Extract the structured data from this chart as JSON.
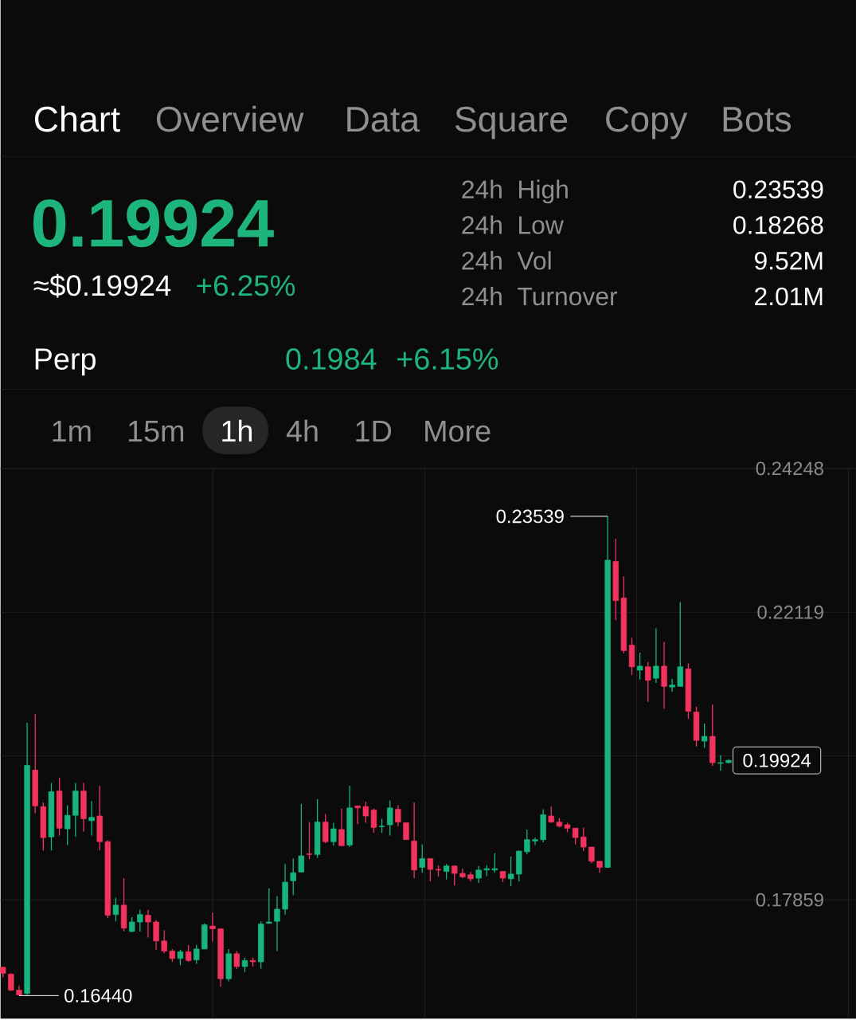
{
  "chart_data": {
    "type": "candlestick",
    "categories": [
      null,
      null,
      null,
      null,
      null,
      null,
      null,
      null,
      null,
      null,
      null,
      null,
      null,
      null,
      null,
      null,
      null,
      null,
      null,
      null,
      null,
      null,
      null,
      null,
      null,
      null,
      null,
      null,
      null,
      null,
      null,
      null,
      null,
      null,
      null,
      null,
      null,
      null,
      null,
      null,
      null,
      null,
      null,
      null,
      null,
      null,
      null,
      null,
      null,
      null,
      null,
      null,
      null,
      null,
      null,
      null,
      null,
      null,
      null,
      null,
      null,
      null,
      null,
      null,
      null,
      null,
      null,
      null,
      null,
      null,
      null,
      null,
      null,
      null,
      null,
      null,
      null,
      null,
      null,
      null,
      null,
      null,
      null,
      null,
      null,
      null,
      null,
      null,
      null,
      null,
      null
    ],
    "ohlc": [
      [
        0.1686,
        0.1687,
        0.1671,
        0.1677
      ],
      [
        0.1676,
        0.1677,
        0.1651,
        0.1652
      ],
      [
        0.1652,
        0.1659,
        0.1644,
        0.1645
      ],
      [
        0.1647,
        0.2048,
        0.1645,
        0.1985
      ],
      [
        0.1978,
        0.2061,
        0.1914,
        0.1925
      ],
      [
        0.1924,
        0.193,
        0.1859,
        0.1878
      ],
      [
        0.1879,
        0.1959,
        0.1859,
        0.1946
      ],
      [
        0.1947,
        0.1967,
        0.1881,
        0.1892
      ],
      [
        0.1891,
        0.1926,
        0.1867,
        0.1911
      ],
      [
        0.1911,
        0.1959,
        0.1879,
        0.1947
      ],
      [
        0.1947,
        0.1959,
        0.1887,
        0.1906
      ],
      [
        0.1903,
        0.1932,
        0.1881,
        0.1908
      ],
      [
        0.191,
        0.1955,
        0.1859,
        0.1872
      ],
      [
        0.1872,
        0.1874,
        0.1759,
        0.1763
      ],
      [
        0.1764,
        0.1789,
        0.1754,
        0.1778
      ],
      [
        0.1778,
        0.1818,
        0.1739,
        0.1744
      ],
      [
        0.1739,
        0.176,
        0.1738,
        0.1753
      ],
      [
        0.1753,
        0.1771,
        0.1739,
        0.1764
      ],
      [
        0.1763,
        0.1771,
        0.173,
        0.1753
      ],
      [
        0.1753,
        0.1756,
        0.1712,
        0.1725
      ],
      [
        0.1725,
        0.1741,
        0.1707,
        0.171
      ],
      [
        0.171,
        0.1713,
        0.1694,
        0.1699
      ],
      [
        0.1699,
        0.1712,
        0.1689,
        0.1709
      ],
      [
        0.1709,
        0.1719,
        0.1694,
        0.1696
      ],
      [
        0.1697,
        0.1719,
        0.1691,
        0.1713
      ],
      [
        0.1713,
        0.1751,
        0.1713,
        0.1749
      ],
      [
        0.1747,
        0.1767,
        0.1724,
        0.1743
      ],
      [
        0.1743,
        0.1743,
        0.1657,
        0.1669
      ],
      [
        0.1669,
        0.1713,
        0.1665,
        0.1706
      ],
      [
        0.1706,
        0.171,
        0.1683,
        0.1687
      ],
      [
        0.1687,
        0.17,
        0.1679,
        0.1696
      ],
      [
        0.1696,
        0.17,
        0.1687,
        0.1694
      ],
      [
        0.1694,
        0.1754,
        0.1684,
        0.175
      ],
      [
        0.1751,
        0.1803,
        0.1751,
        0.1753
      ],
      [
        0.1754,
        0.1791,
        0.171,
        0.1772
      ],
      [
        0.1772,
        0.1839,
        0.1764,
        0.1812
      ],
      [
        0.1814,
        0.1847,
        0.1793,
        0.1826
      ],
      [
        0.1827,
        0.1928,
        0.1827,
        0.1851
      ],
      [
        0.1854,
        0.1901,
        0.1846,
        0.1853
      ],
      [
        0.1853,
        0.1935,
        0.1848,
        0.1901
      ],
      [
        0.1901,
        0.1913,
        0.187,
        0.1872
      ],
      [
        0.1872,
        0.19,
        0.1866,
        0.1891
      ],
      [
        0.189,
        0.1921,
        0.1866,
        0.1866
      ],
      [
        0.1867,
        0.1955,
        0.1864,
        0.1922
      ],
      [
        0.1925,
        0.1925,
        0.1898,
        0.1922
      ],
      [
        0.1924,
        0.1931,
        0.19,
        0.191
      ],
      [
        0.1919,
        0.1921,
        0.1885,
        0.1893
      ],
      [
        0.1894,
        0.1906,
        0.1885,
        0.1895
      ],
      [
        0.1897,
        0.1933,
        0.1881,
        0.1922
      ],
      [
        0.192,
        0.1926,
        0.1895,
        0.1901
      ],
      [
        0.19,
        0.1901,
        0.1875,
        0.1875
      ],
      [
        0.1873,
        0.193,
        0.1818,
        0.183
      ],
      [
        0.1834,
        0.1868,
        0.1826,
        0.1847
      ],
      [
        0.1847,
        0.1847,
        0.1813,
        0.1831
      ],
      [
        0.1831,
        0.1837,
        0.182,
        0.183
      ],
      [
        0.1828,
        0.1839,
        0.1816,
        0.1836
      ],
      [
        0.1836,
        0.1837,
        0.1807,
        0.1825
      ],
      [
        0.1825,
        0.1832,
        0.1818,
        0.182
      ],
      [
        0.1823,
        0.1827,
        0.1813,
        0.1817
      ],
      [
        0.1818,
        0.1836,
        0.1811,
        0.183
      ],
      [
        0.183,
        0.1837,
        0.1821,
        0.1832
      ],
      [
        0.183,
        0.1855,
        0.1826,
        0.1832
      ],
      [
        0.1828,
        0.1828,
        0.1812,
        0.1818
      ],
      [
        0.1817,
        0.185,
        0.1806,
        0.1824
      ],
      [
        0.1824,
        0.1859,
        0.1813,
        0.1858
      ],
      [
        0.1857,
        0.189,
        0.1853,
        0.1875
      ],
      [
        0.1873,
        0.1878,
        0.1867,
        0.1875
      ],
      [
        0.1875,
        0.192,
        0.1871,
        0.1912
      ],
      [
        0.191,
        0.1924,
        0.19,
        0.1901
      ],
      [
        0.1901,
        0.1907,
        0.1893,
        0.1895
      ],
      [
        0.1897,
        0.19,
        0.1886,
        0.1892
      ],
      [
        0.1892,
        0.1892,
        0.1868,
        0.1878
      ],
      [
        0.1879,
        0.1893,
        0.1858,
        0.1864
      ],
      [
        0.1864,
        0.1864,
        0.184,
        0.1843
      ],
      [
        0.1843,
        0.1843,
        0.1826,
        0.1834
      ],
      [
        0.1834,
        0.23539,
        0.1833,
        0.2289
      ],
      [
        0.2287,
        0.2321,
        0.22,
        0.2229
      ],
      [
        0.2233,
        0.2265,
        0.2151,
        0.2155
      ],
      [
        0.2163,
        0.2174,
        0.2119,
        0.2131
      ],
      [
        0.2126,
        0.2152,
        0.2112,
        0.2132
      ],
      [
        0.2131,
        0.2138,
        0.2079,
        0.2111
      ],
      [
        0.2114,
        0.2188,
        0.2107,
        0.2132
      ],
      [
        0.2132,
        0.2168,
        0.2069,
        0.2102
      ],
      [
        0.2101,
        0.2113,
        0.2094,
        0.2104
      ],
      [
        0.2102,
        0.2227,
        0.2102,
        0.2131
      ],
      [
        0.2128,
        0.2136,
        0.2054,
        0.2065
      ],
      [
        0.2064,
        0.2072,
        0.2013,
        0.2022
      ],
      [
        0.2021,
        0.2047,
        0.2011,
        0.2028
      ],
      [
        0.2028,
        0.2075,
        0.1984,
        0.1989
      ],
      [
        0.1988,
        0.2,
        0.1977,
        0.1989
      ],
      [
        0.1989,
        0.1994,
        0.1988,
        0.19924
      ]
    ],
    "colors": [
      "#f2335e",
      "#f2335e",
      "#f2335e",
      "#17b57d",
      "#f2335e",
      "#f2335e",
      "#17b57d",
      "#f2335e",
      "#17b57d",
      "#17b57d",
      "#f2335e",
      "#17b57d",
      "#f2335e",
      "#f2335e",
      "#17b57d",
      "#f2335e",
      "#17b57d",
      "#17b57d",
      "#f2335e",
      "#f2335e",
      "#f2335e",
      "#f2335e",
      "#17b57d",
      "#f2335e",
      "#17b57d",
      "#17b57d",
      "#f2335e",
      "#f2335e",
      "#17b57d",
      "#f2335e",
      "#17b57d",
      "#f2335e",
      "#17b57d",
      "#17b57d",
      "#17b57d",
      "#17b57d",
      "#17b57d",
      "#17b57d",
      "#f2335e",
      "#17b57d",
      "#f2335e",
      "#17b57d",
      "#f2335e",
      "#17b57d",
      "#f2335e",
      "#f2335e",
      "#f2335e",
      "#17b57d",
      "#17b57d",
      "#f2335e",
      "#f2335e",
      "#f2335e",
      "#17b57d",
      "#f2335e",
      "#f2335e",
      "#17b57d",
      "#f2335e",
      "#f2335e",
      "#f2335e",
      "#17b57d",
      "#17b57d",
      "#17b57d",
      "#f2335e",
      "#17b57d",
      "#17b57d",
      "#17b57d",
      "#17b57d",
      "#17b57d",
      "#f2335e",
      "#f2335e",
      "#f2335e",
      "#f2335e",
      "#f2335e",
      "#f2335e",
      "#f2335e",
      "#17b57d",
      "#f2335e",
      "#f2335e",
      "#f2335e",
      "#17b57d",
      "#f2335e",
      "#17b57d",
      "#f2335e",
      "#17b57d",
      "#17b57d",
      "#f2335e",
      "#f2335e",
      "#17b57d",
      "#f2335e",
      "#17b57d",
      "#17b57d"
    ],
    "ylim": [
      0.161,
      0.24248
    ],
    "yticks": [
      0.24248,
      0.22119,
      {
        "value": 0.19989,
        "label": null
      },
      0.17859
    ],
    "grid": true,
    "tick_labels": "y",
    "annotations": [
      "Chart",
      "Overview",
      "Data",
      "Square",
      "Copy",
      "Bots",
      "0.19924",
      "≈$0.19924",
      "+6.25%",
      "24h",
      "High",
      "0.23539",
      "24h",
      "Low",
      "0.18268",
      "24h",
      "Vol",
      "9.52M",
      "24h",
      "Turnover",
      "2.01M",
      "Perp",
      "0.1984",
      "+6.15%",
      "1m",
      "15m",
      "1h",
      "4h",
      "1D",
      "More",
      "0.23539",
      "0.16440",
      "0.19924"
    ]
  }
}
